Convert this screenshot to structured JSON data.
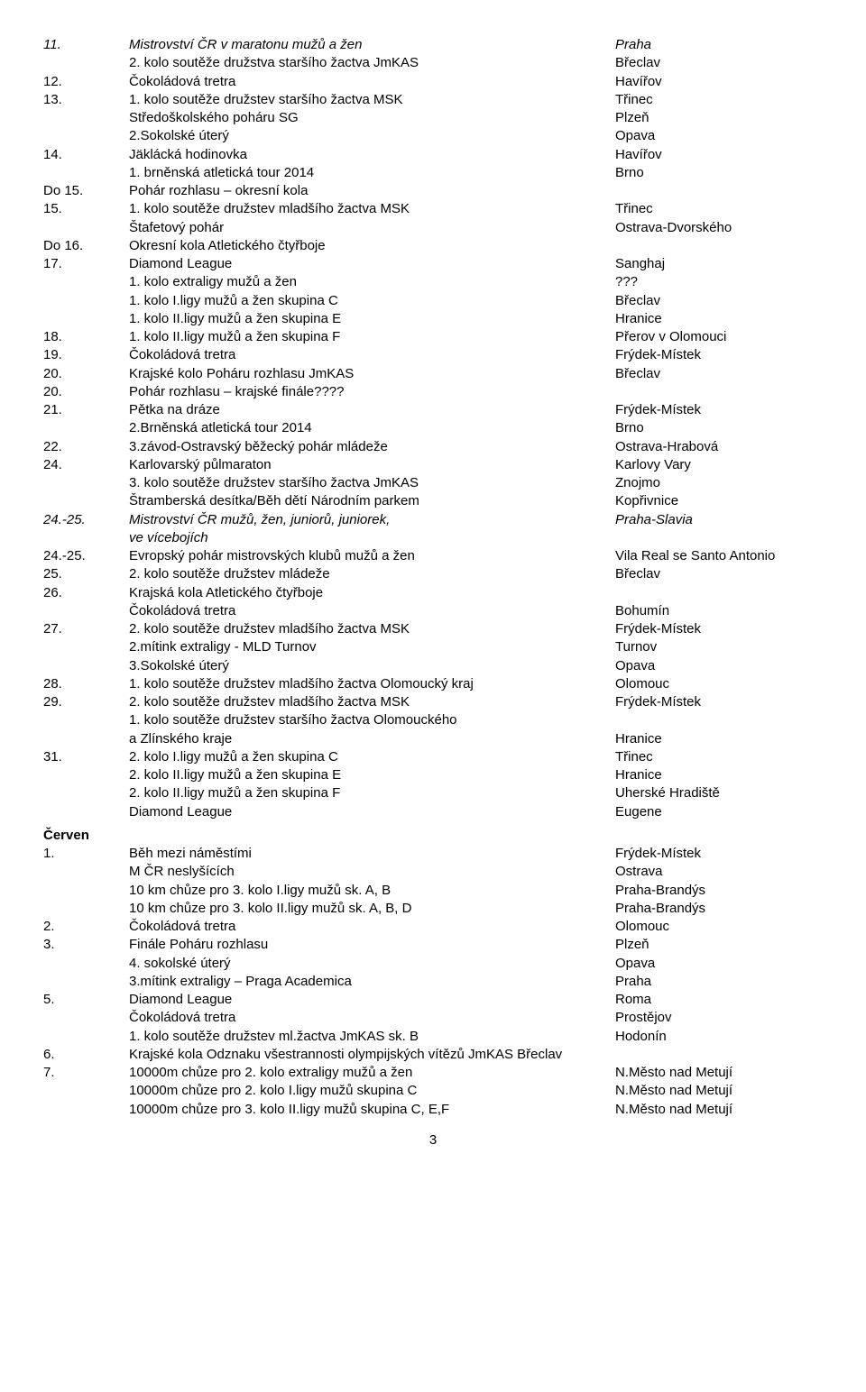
{
  "rows": [
    {
      "num": "11.",
      "event": "Mistrovství ČR v maratonu mužů a žen",
      "loc": "Praha",
      "italic": true
    },
    {
      "num": "",
      "event": "2. kolo soutěže družstva staršího žactva JmKAS",
      "loc": "Břeclav"
    },
    {
      "num": "12.",
      "event": "Čokoládová tretra",
      "loc": "Havířov"
    },
    {
      "num": "13.",
      "event": "1. kolo soutěže družstev staršího žactva MSK",
      "loc": "Třinec"
    },
    {
      "num": "",
      "event": "Středoškolského poháru SG",
      "loc": "Plzeň"
    },
    {
      "num": "",
      "event": "2.Sokolské úterý",
      "loc": "Opava"
    },
    {
      "num": "14.",
      "event": "Jäklácká hodinovka",
      "loc": "Havířov"
    },
    {
      "num": "",
      "event": "1. brněnská atletická tour 2014",
      "loc": "Brno"
    },
    {
      "num": "Do 15.",
      "event": "Pohár rozhlasu – okresní kola",
      "loc": ""
    },
    {
      "num": "15.",
      "event": "1. kolo soutěže družstev mladšího žactva MSK",
      "loc": "Třinec"
    },
    {
      "num": "",
      "event": "Štafetový pohár",
      "loc": "Ostrava-Dvorského"
    },
    {
      "num": "Do 16.",
      "event": "Okresní kola Atletického čtyřboje",
      "loc": ""
    },
    {
      "num": "17.",
      "event": "Diamond League",
      "loc": "Sanghaj"
    },
    {
      "num": "",
      "event": "1. kolo extraligy mužů a žen",
      "loc": "???"
    },
    {
      "num": "",
      "event": "1. kolo I.ligy mužů a žen skupina C",
      "loc": "Břeclav"
    },
    {
      "num": "",
      "event": "1. kolo II.ligy mužů a žen skupina E",
      "loc": "Hranice"
    },
    {
      "num": "18.",
      "event": "1. kolo II.ligy mužů a žen skupina F",
      "loc": "Přerov v Olomouci"
    },
    {
      "num": "19.",
      "event": "Čokoládová tretra",
      "loc": "Frýdek-Místek"
    },
    {
      "num": "20.",
      "event": "Krajské kolo Poháru rozhlasu JmKAS",
      "loc": "Břeclav"
    },
    {
      "num": "20.",
      "event": "Pohár rozhlasu – krajské finále????",
      "loc": ""
    },
    {
      "num": "21.",
      "event": "Pětka na dráze",
      "loc": "Frýdek-Místek"
    },
    {
      "num": "",
      "event": "2.Brněnská atletická tour 2014",
      "loc": "Brno"
    },
    {
      "num": "22.",
      "event": "3.závod-Ostravský běžecký pohár mládeže",
      "loc": "Ostrava-Hrabová"
    },
    {
      "num": "24.",
      "event": "Karlovarský půlmaraton",
      "loc": "Karlovy Vary"
    },
    {
      "num": "",
      "event": "3. kolo soutěže družstev staršího žactva JmKAS",
      "loc": "Znojmo"
    },
    {
      "num": "",
      "event": "Štramberská desítka/Běh dětí Národním parkem",
      "loc": "Kopřivnice"
    },
    {
      "num": "24.-25.",
      "event": "Mistrovství ČR mužů, žen, juniorů, juniorek,",
      "loc": "Praha-Slavia",
      "italic": true
    },
    {
      "num": "",
      "event": "ve vícebojích",
      "loc": "",
      "italic": true
    },
    {
      "num": "24.-25.",
      "event": "Evropský pohár mistrovských klubů mužů a žen",
      "loc": "Vila Real se Santo Antonio"
    },
    {
      "num": "25.",
      "event": "2. kolo soutěže družstev mládeže",
      "loc": "Břeclav"
    },
    {
      "num": "26.",
      "event": "Krajská kola Atletického čtyřboje",
      "loc": ""
    },
    {
      "num": "",
      "event": "Čokoládová tretra",
      "loc": "Bohumín"
    },
    {
      "num": "27.",
      "event": "2. kolo soutěže družstev mladšího žactva MSK",
      "loc": "Frýdek-Místek"
    },
    {
      "num": "",
      "event": "2.mítink extraligy - MLD Turnov",
      "loc": "Turnov"
    },
    {
      "num": "",
      "event": "3.Sokolské úterý",
      "loc": "Opava"
    },
    {
      "num": "28.",
      "event": "1. kolo soutěže družstev mladšího žactva Olomoucký kraj",
      "loc": "Olomouc"
    },
    {
      "num": "29.",
      "event": "2. kolo soutěže družstev mladšího žactva MSK",
      "loc": "Frýdek-Místek"
    },
    {
      "num": "",
      "event": "1. kolo soutěže družstev staršího žactva Olomouckého",
      "loc": ""
    },
    {
      "num": "",
      "event": "a Zlínského kraje",
      "loc": "Hranice"
    },
    {
      "num": "31.",
      "event": "2. kolo I.ligy mužů a žen skupina C",
      "loc": "Třinec"
    },
    {
      "num": "",
      "event": "2. kolo II.ligy mužů a žen skupina E",
      "loc": "Hranice"
    },
    {
      "num": "",
      "event": "2. kolo II.ligy mužů a žen skupina F",
      "loc": "Uherské Hradiště"
    },
    {
      "num": "",
      "event": "Diamond League",
      "loc": "Eugene"
    }
  ],
  "month": "Červen",
  "rows2": [
    {
      "num": "1.",
      "event": "Běh mezi náměstími",
      "loc": "Frýdek-Místek"
    },
    {
      "num": "",
      "event": "M ČR neslyšících",
      "loc": "Ostrava"
    },
    {
      "num": "",
      "event": "10 km chůze pro 3. kolo I.ligy mužů sk. A, B",
      "loc": "Praha-Brandýs"
    },
    {
      "num": "",
      "event": "10 km chůze pro 3. kolo II.ligy mužů sk. A, B, D",
      "loc": "Praha-Brandýs"
    },
    {
      "num": "2.",
      "event": "Čokoládová tretra",
      "loc": "Olomouc"
    },
    {
      "num": "3.",
      "event": "Finále Poháru rozhlasu",
      "loc": "Plzeň"
    },
    {
      "num": "",
      "event": "4. sokolské úterý",
      "loc": "Opava"
    },
    {
      "num": "",
      "event": "3.mítink extraligy – Praga Academica",
      "loc": "Praha"
    },
    {
      "num": "5.",
      "event": "Diamond League",
      "loc": "Roma"
    },
    {
      "num": "",
      "event": "Čokoládová tretra",
      "loc": "Prostějov"
    },
    {
      "num": "",
      "event": "1. kolo soutěže družstev ml.žactva JmKAS sk. B",
      "loc": "Hodonín"
    },
    {
      "num": "6.",
      "event": "Krajské kola Odznaku všestrannosti olympijských vítězů JmKAS Břeclav",
      "loc": ""
    },
    {
      "num": "7.",
      "event": "10000m chůze pro 2. kolo extraligy mužů a žen",
      "loc": "N.Město nad Metují"
    },
    {
      "num": "",
      "event": "10000m chůze pro 2. kolo I.ligy mužů skupina C",
      "loc": "N.Město nad Metují"
    },
    {
      "num": "",
      "event": "10000m chůze pro 3. kolo II.ligy mužů skupina C, E,F",
      "loc": "N.Město nad Metují"
    }
  ],
  "pageNumber": "3"
}
